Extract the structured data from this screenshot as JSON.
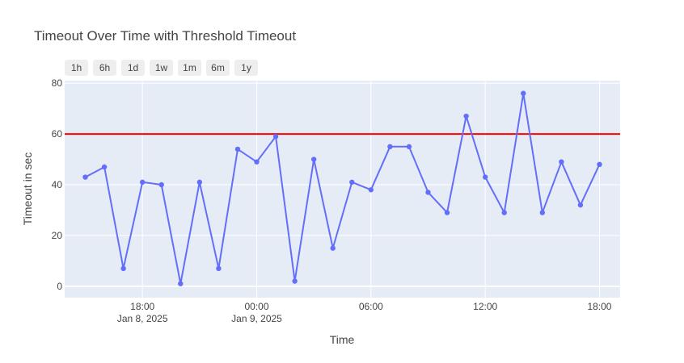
{
  "chart_data": {
    "type": "line",
    "title": "Timeout Over Time with Threshold Timeout",
    "xlabel": "Time",
    "ylabel": "Timeout in sec",
    "x": [
      "2025-01-08 15:00",
      "2025-01-08 16:00",
      "2025-01-08 17:00",
      "2025-01-08 18:00",
      "2025-01-08 19:00",
      "2025-01-08 20:00",
      "2025-01-08 21:00",
      "2025-01-08 22:00",
      "2025-01-08 23:00",
      "2025-01-09 00:00",
      "2025-01-09 01:00",
      "2025-01-09 02:00",
      "2025-01-09 03:00",
      "2025-01-09 04:00",
      "2025-01-09 05:00",
      "2025-01-09 06:00",
      "2025-01-09 07:00",
      "2025-01-09 08:00",
      "2025-01-09 09:00",
      "2025-01-09 10:00",
      "2025-01-09 11:00",
      "2025-01-09 12:00",
      "2025-01-09 13:00",
      "2025-01-09 14:00",
      "2025-01-09 15:00",
      "2025-01-09 16:00",
      "2025-01-09 17:00",
      "2025-01-09 18:00"
    ],
    "series": [
      {
        "values": [
          43,
          47,
          7,
          41,
          40,
          1,
          41,
          7,
          54,
          49,
          59,
          2,
          50,
          15,
          41,
          38,
          55,
          55,
          37,
          29,
          67,
          43,
          29,
          76,
          29,
          49,
          32,
          48
        ],
        "color": "#636efa"
      }
    ],
    "threshold": {
      "value": 60,
      "color": "#ff0000"
    },
    "ylim": [
      -4.5,
      81
    ],
    "xlim": [
      "2025-01-08 13:55",
      "2025-01-09 19:05"
    ],
    "yticks": [
      0,
      20,
      40,
      60,
      80
    ],
    "xticks": [
      {
        "at": "2025-01-08 18:00",
        "label": "18:00",
        "sublabel": "Jan 8, 2025"
      },
      {
        "at": "2025-01-09 00:00",
        "label": "00:00",
        "sublabel": "Jan 9, 2025"
      },
      {
        "at": "2025-01-09 06:00",
        "label": "06:00",
        "sublabel": ""
      },
      {
        "at": "2025-01-09 12:00",
        "label": "12:00",
        "sublabel": ""
      },
      {
        "at": "2025-01-09 18:00",
        "label": "18:00",
        "sublabel": ""
      }
    ],
    "grid": true,
    "plot_bg": "#e5ecf6",
    "range_selector": [
      "1h",
      "6h",
      "1d",
      "1w",
      "1m",
      "6m",
      "1y"
    ]
  }
}
